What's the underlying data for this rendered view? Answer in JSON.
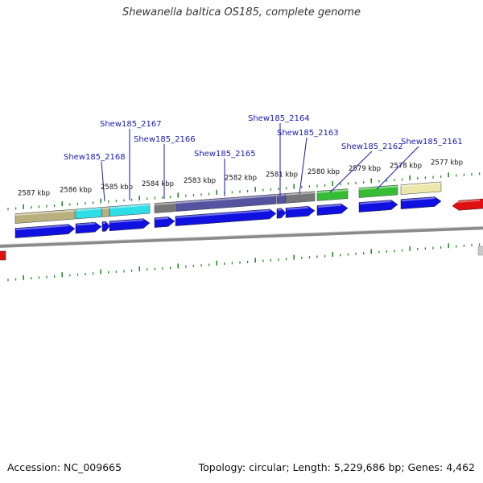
{
  "title": "Shewanella baltica OS185, complete genome",
  "accession": "Accession: NC_009665",
  "stats": "Topology: circular; Length: 5,229,686 bp; Genes: 4,462",
  "kbp_labels": [
    "2587 kbp",
    "2586 kbp",
    "2585 kbp",
    "2584 kbp",
    "2583 kbp",
    "2582 kbp",
    "2581 kbp",
    "2580 kbp",
    "2579 kbp",
    "2578 kbp",
    "2577 kbp"
  ],
  "gene_labels": [
    "Shew185_2168",
    "Shew185_2167",
    "Shew185_2166",
    "Shew185_2165",
    "Shew185_2164",
    "Shew185_2163",
    "Shew185_2162",
    "Shew185_2161"
  ],
  "colors": {
    "gene_label": "#1a1ab0",
    "tick": "#2a8a2a",
    "cds": "#1010e0",
    "khaki": "#b5ad78",
    "cyan": "#22dde6",
    "grey": "#707070",
    "slate": "#4a4a9a",
    "green": "#2bbb2b",
    "pale_yellow": "#ece6a6",
    "red": "#e01010",
    "backbone": "#8a8a8a"
  }
}
